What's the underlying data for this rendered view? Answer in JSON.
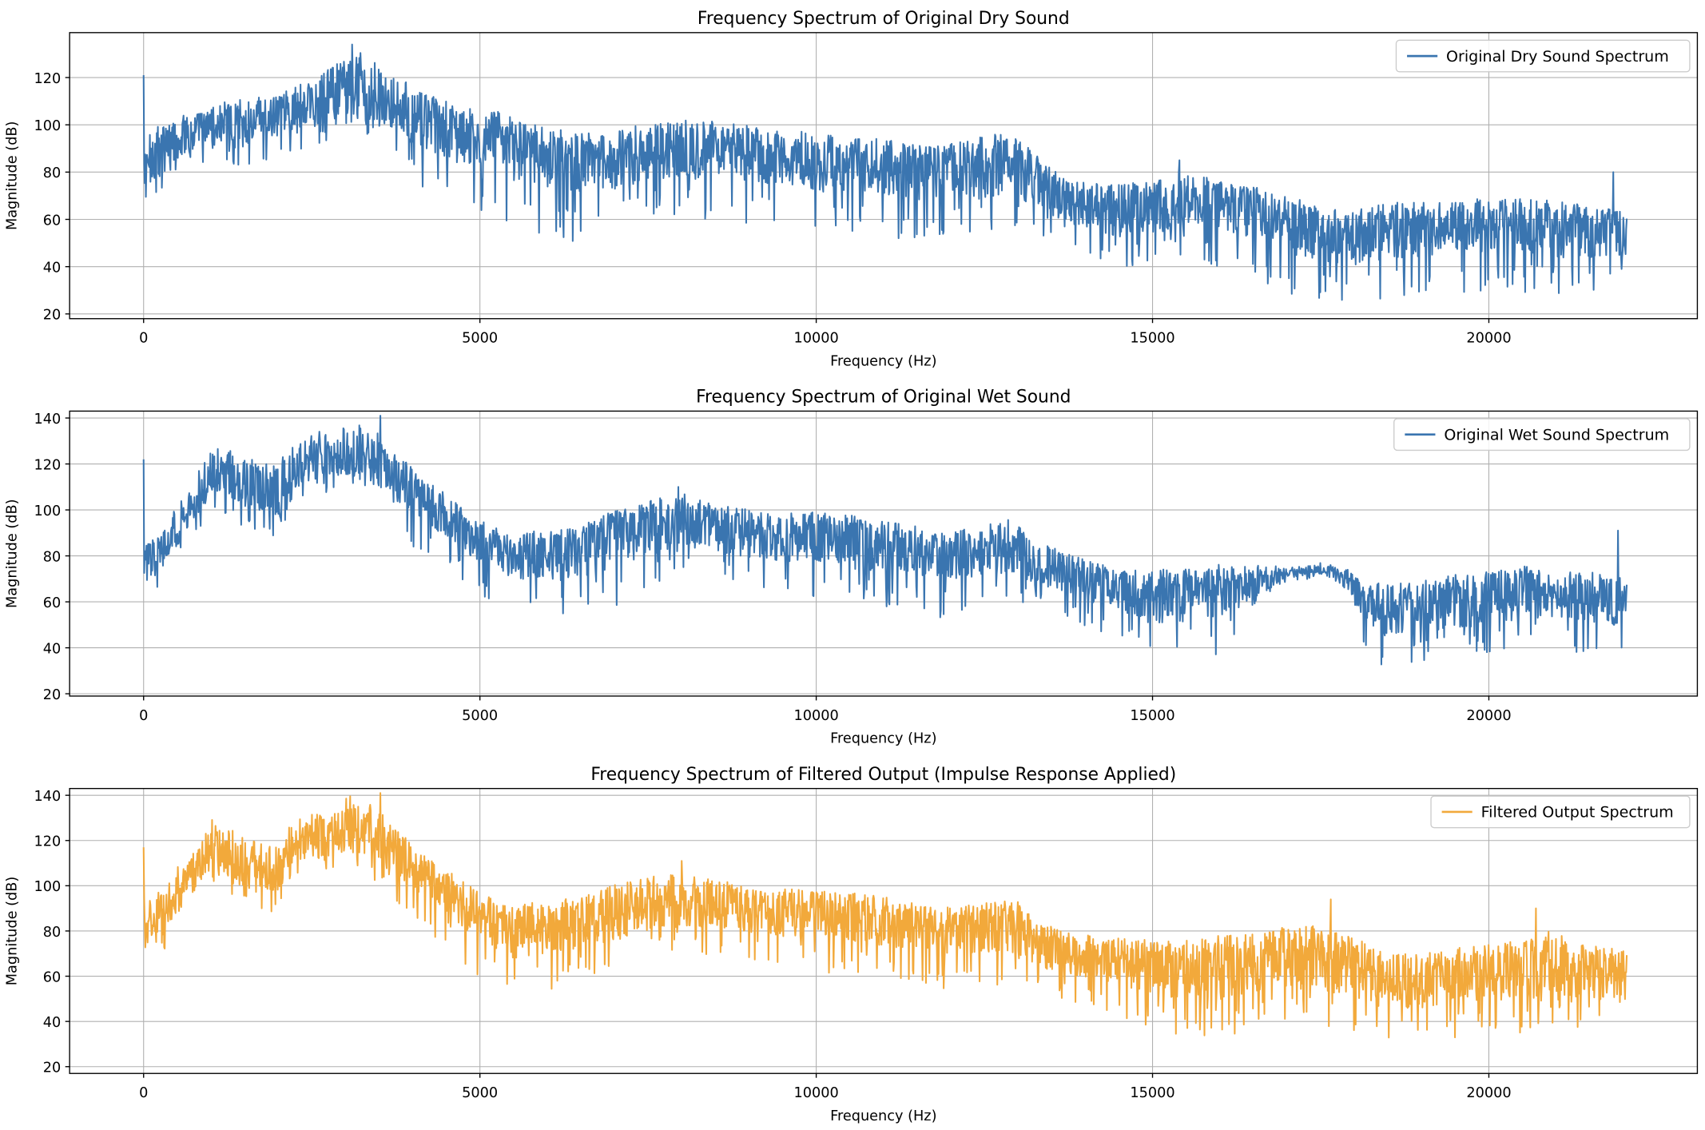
{
  "chart_data": [
    {
      "type": "line",
      "title": "Frequency Spectrum of Original Dry Sound",
      "xlabel": "Frequency (Hz)",
      "ylabel": "Magnitude (dB)",
      "xlim": [
        -1100,
        23100
      ],
      "ylim": [
        18,
        139
      ],
      "xticks": [
        0,
        5000,
        10000,
        15000,
        20000
      ],
      "yticks": [
        20,
        40,
        60,
        80,
        100,
        120
      ],
      "grid": true,
      "legend_position": "upper right",
      "series": [
        {
          "name": "Original Dry Sound Spectrum",
          "color": "#3a75b0",
          "envelope": {
            "x": [
              0,
              80,
              200,
              400,
              700,
              1000,
              1500,
              2000,
              2500,
              2800,
              3200,
              3600,
              4000,
              4500,
              5000,
              5500,
              6000,
              6500,
              7000,
              7500,
              8000,
              8500,
              9000,
              9500,
              10000,
              10500,
              11000,
              11500,
              12000,
              12500,
              12800,
              13200,
              13600,
              14000,
              14500,
              15000,
              15500,
              16000,
              16500,
              17000,
              17500,
              18000,
              18500,
              19000,
              19500,
              20000,
              20500,
              21000,
              21500,
              22050
            ],
            "y": [
              78,
              85,
              88,
              92,
              96,
              99,
              101,
              103,
              108,
              114,
              116,
              112,
              103,
              97,
              95,
              90,
              86,
              84,
              85,
              88,
              90,
              89,
              88,
              86,
              84,
              83,
              82,
              80,
              80,
              82,
              84,
              78,
              70,
              66,
              64,
              65,
              68,
              65,
              64,
              58,
              54,
              52,
              55,
              56,
              57,
              58,
              57,
              56,
              55,
              54
            ]
          },
          "spread_above": [
            14,
            12,
            12,
            12,
            10,
            10,
            10,
            10,
            12,
            14,
            18,
            14,
            12,
            12,
            10,
            12,
            10,
            10,
            12,
            12,
            12,
            12,
            10,
            10,
            12,
            10,
            10,
            10,
            12,
            14,
            14,
            12,
            10,
            10,
            12,
            12,
            14,
            10,
            10,
            10,
            10,
            10,
            10,
            10,
            10,
            10,
            10,
            12,
            10,
            12
          ],
          "spread_below": [
            26,
            24,
            24,
            14,
            14,
            16,
            18,
            18,
            18,
            20,
            22,
            22,
            28,
            30,
            32,
            34,
            34,
            34,
            30,
            28,
            28,
            30,
            30,
            30,
            28,
            28,
            30,
            30,
            26,
            28,
            26,
            26,
            20,
            22,
            24,
            24,
            24,
            26,
            28,
            30,
            30,
            30,
            30,
            28,
            28,
            28,
            28,
            28,
            26,
            18
          ],
          "spikes": [
            [
              0,
              121
            ],
            [
              3100,
              134
            ],
            [
              3900,
              118
            ],
            [
              5500,
              96
            ],
            [
              15400,
              85
            ],
            [
              21850,
              80
            ]
          ]
        }
      ]
    },
    {
      "type": "line",
      "title": "Frequency Spectrum of Original Wet Sound",
      "xlabel": "Frequency (Hz)",
      "ylabel": "Magnitude (dB)",
      "xlim": [
        -1100,
        23100
      ],
      "ylim": [
        19,
        143
      ],
      "xticks": [
        0,
        5000,
        10000,
        15000,
        20000
      ],
      "yticks": [
        20,
        40,
        60,
        80,
        100,
        120,
        140
      ],
      "grid": true,
      "legend_position": "upper right",
      "series": [
        {
          "name": "Original Wet Sound Spectrum",
          "color": "#3a75b0",
          "envelope": {
            "x": [
              0,
              200,
              500,
              800,
              1000,
              1300,
              1600,
              2000,
              2200,
              2500,
              2800,
              3200,
              3600,
              4000,
              4500,
              5000,
              5500,
              6000,
              6500,
              7000,
              7500,
              8000,
              8500,
              9000,
              9500,
              10000,
              10500,
              11000,
              11500,
              12000,
              12500,
              12900,
              13300,
              13800,
              14500,
              15000,
              15500,
              16000,
              16500,
              17000,
              17500,
              17900,
              18100,
              18500,
              19000,
              19500,
              20000,
              20500,
              21000,
              21500,
              22050
            ],
            "y": [
              76,
              80,
              92,
              104,
              118,
              115,
              110,
              108,
              118,
              122,
              124,
              126,
              118,
              108,
              98,
              86,
              80,
              80,
              82,
              88,
              92,
              96,
              92,
              90,
              88,
              88,
              86,
              84,
              82,
              80,
              82,
              84,
              76,
              72,
              64,
              62,
              63,
              64,
              68,
              72,
              74,
              71,
              60,
              56,
              58,
              60,
              62,
              64,
              64,
              62,
              60
            ]
          },
          "spread_above": [
            10,
            10,
            10,
            12,
            12,
            12,
            12,
            12,
            12,
            12,
            12,
            16,
            12,
            10,
            8,
            8,
            8,
            10,
            10,
            12,
            12,
            12,
            10,
            10,
            10,
            10,
            12,
            10,
            10,
            8,
            10,
            12,
            10,
            8,
            10,
            12,
            12,
            12,
            8,
            4,
            3,
            4,
            8,
            12,
            12,
            12,
            12,
            12,
            10,
            10,
            10
          ],
          "spread_below": [
            14,
            14,
            12,
            14,
            16,
            18,
            20,
            20,
            16,
            16,
            16,
            16,
            18,
            24,
            24,
            24,
            24,
            28,
            28,
            30,
            26,
            24,
            24,
            24,
            24,
            26,
            26,
            26,
            26,
            28,
            28,
            26,
            22,
            20,
            22,
            24,
            26,
            28,
            10,
            4,
            3,
            6,
            20,
            26,
            24,
            26,
            26,
            24,
            24,
            26,
            24
          ],
          "spikes": [
            [
              0,
              122
            ],
            [
              3520,
              141
            ],
            [
              7950,
              110
            ],
            [
              21920,
              91
            ]
          ]
        }
      ]
    },
    {
      "type": "line",
      "title": "Frequency Spectrum of Filtered Output (Impulse Response Applied)",
      "xlabel": "Frequency (Hz)",
      "ylabel": "Magnitude (dB)",
      "xlim": [
        -1100,
        23100
      ],
      "ylim": [
        17,
        143
      ],
      "xticks": [
        0,
        5000,
        10000,
        15000,
        20000
      ],
      "yticks": [
        20,
        40,
        60,
        80,
        100,
        120,
        140
      ],
      "grid": true,
      "legend_position": "upper right",
      "series": [
        {
          "name": "Filtered Output Spectrum",
          "color": "#f2a93b",
          "envelope": {
            "x": [
              0,
              200,
              500,
              800,
              1000,
              1300,
              1600,
              2000,
              2200,
              2500,
              2800,
              3200,
              3600,
              4000,
              4500,
              5000,
              5500,
              6000,
              6500,
              7000,
              7500,
              8000,
              8500,
              9000,
              9500,
              10000,
              10500,
              11000,
              11500,
              12000,
              12500,
              12900,
              13300,
              13800,
              14500,
              15000,
              15500,
              16000,
              16500,
              17000,
              17500,
              18000,
              18500,
              19000,
              19500,
              20000,
              20500,
              21000,
              21500,
              22050
            ],
            "y": [
              86,
              84,
              96,
              108,
              118,
              114,
              110,
              108,
              118,
              122,
              124,
              126,
              118,
              108,
              98,
              86,
              80,
              82,
              84,
              88,
              92,
              94,
              92,
              90,
              88,
              88,
              86,
              84,
              82,
              80,
              82,
              82,
              74,
              70,
              66,
              64,
              63,
              64,
              66,
              68,
              68,
              64,
              58,
              58,
              60,
              62,
              62,
              62,
              62,
              60
            ]
          },
          "spread_above": [
            16,
            14,
            12,
            12,
            12,
            12,
            12,
            12,
            12,
            12,
            12,
            16,
            12,
            10,
            8,
            8,
            10,
            10,
            10,
            12,
            12,
            14,
            10,
            10,
            10,
            10,
            12,
            10,
            10,
            8,
            10,
            14,
            10,
            8,
            10,
            12,
            12,
            14,
            12,
            14,
            16,
            12,
            12,
            12,
            12,
            12,
            14,
            20,
            12,
            12
          ],
          "spread_below": [
            16,
            20,
            14,
            14,
            16,
            18,
            20,
            20,
            16,
            16,
            16,
            18,
            20,
            24,
            24,
            28,
            30,
            30,
            28,
            28,
            26,
            24,
            24,
            24,
            24,
            26,
            26,
            26,
            26,
            28,
            28,
            26,
            22,
            22,
            26,
            28,
            30,
            32,
            30,
            30,
            30,
            30,
            30,
            28,
            28,
            30,
            28,
            26,
            26,
            26
          ],
          "spikes": [
            [
              0,
              117
            ],
            [
              3520,
              141
            ],
            [
              8000,
              111
            ],
            [
              17650,
              94
            ],
            [
              20700,
              90
            ]
          ]
        }
      ]
    }
  ]
}
